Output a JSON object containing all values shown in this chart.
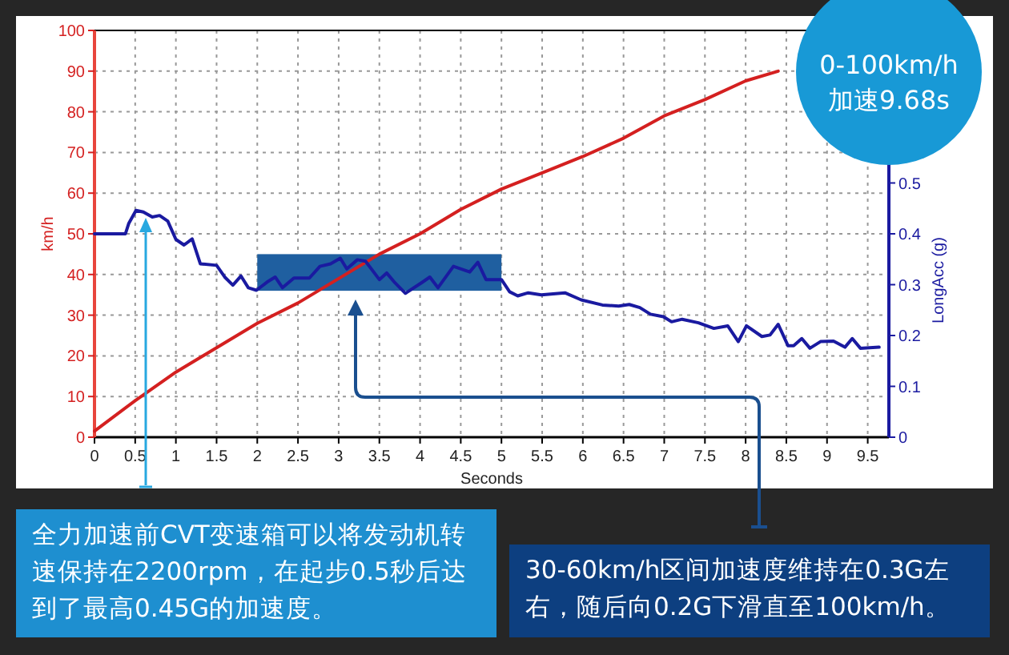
{
  "chart_data": {
    "type": "line",
    "xlabel": "Seconds",
    "ylabel": "km/h",
    "y2label": "LongAcc (g)",
    "xlim": [
      0,
      9.76
    ],
    "xticks": [
      0,
      0.5,
      1,
      1.5,
      2,
      2.5,
      3,
      3.5,
      4,
      4.5,
      5,
      5.5,
      6,
      6.5,
      7,
      7.5,
      8,
      8.5,
      9,
      9.5
    ],
    "ylim": [
      0,
      100
    ],
    "yticks": [
      0,
      10,
      20,
      30,
      40,
      50,
      60,
      70,
      80,
      90,
      100
    ],
    "y2lim": [
      0,
      0.8
    ],
    "y2ticks": [
      0,
      0.1,
      0.2,
      0.3,
      0.4,
      0.5
    ],
    "grid": true,
    "series": [
      {
        "color": "#d42020",
        "x": [
          0,
          0.5,
          1,
          1.5,
          2,
          2.5,
          3,
          3.5,
          4,
          4.5,
          5,
          5.5,
          6,
          6.5,
          7,
          7.5,
          8,
          8.4
        ],
        "values": [
          1.5,
          9,
          16,
          22,
          28,
          33,
          39,
          45,
          50,
          56,
          61,
          65,
          69,
          73.5,
          79,
          83,
          87.6,
          90
        ]
      },
      {
        "color": "#1a1aa0",
        "axis": "y2",
        "x": [
          0,
          0.25,
          0.38,
          0.42,
          0.51,
          0.6,
          0.71,
          0.8,
          0.9,
          1.0,
          1.1,
          1.2,
          1.3,
          1.5,
          1.6,
          1.7,
          1.8,
          1.89,
          1.99,
          2.12,
          2.22,
          2.31,
          2.45,
          2.64,
          2.77,
          2.9,
          3.02,
          3.1,
          3.23,
          3.33,
          3.5,
          3.59,
          3.69,
          3.82,
          4.02,
          4.12,
          4.22,
          4.41,
          4.61,
          4.71,
          4.81,
          5.0,
          5.1,
          5.2,
          5.33,
          5.49,
          5.78,
          5.98,
          6.24,
          6.44,
          6.57,
          6.7,
          6.83,
          6.99,
          7.09,
          7.22,
          7.42,
          7.61,
          7.78,
          7.91,
          8.01,
          8.2,
          8.3,
          8.4,
          8.52,
          8.59,
          8.69,
          8.79,
          8.92,
          9.08,
          9.22,
          9.31,
          9.41,
          9.64
        ],
        "values": [
          0.4,
          0.4,
          0.4,
          0.42,
          0.446,
          0.443,
          0.433,
          0.436,
          0.425,
          0.389,
          0.378,
          0.39,
          0.341,
          0.338,
          0.315,
          0.299,
          0.317,
          0.294,
          0.289,
          0.305,
          0.315,
          0.294,
          0.313,
          0.313,
          0.336,
          0.341,
          0.352,
          0.331,
          0.349,
          0.346,
          0.31,
          0.323,
          0.304,
          0.283,
          0.304,
          0.315,
          0.294,
          0.336,
          0.325,
          0.344,
          0.31,
          0.31,
          0.286,
          0.278,
          0.284,
          0.28,
          0.284,
          0.27,
          0.26,
          0.258,
          0.261,
          0.255,
          0.242,
          0.237,
          0.227,
          0.232,
          0.225,
          0.214,
          0.219,
          0.188,
          0.219,
          0.198,
          0.201,
          0.222,
          0.18,
          0.18,
          0.194,
          0.175,
          0.188,
          0.189,
          0.177,
          0.194,
          0.175,
          0.177
        ]
      }
    ],
    "bands": [
      {
        "axis": "x",
        "from": 2,
        "to": 5,
        "color": "#1f5fa0"
      }
    ],
    "annotations": [
      "0-100km/h\n加速9.68s",
      "全力加速前CVT变速箱可以将发动机转速保持在2200rpm，在起步0.5秒后达到了最高0.45G的加速度。",
      "30-60km/h区间加速度维持在0.3G左右，随后向0.2G下滑直至100km/h。"
    ]
  }
}
